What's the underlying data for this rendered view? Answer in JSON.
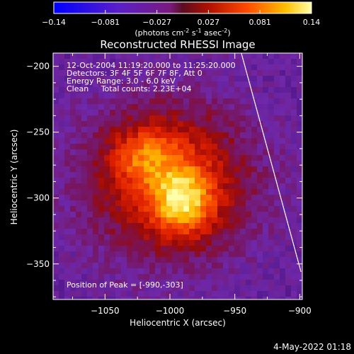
{
  "colorbar": {
    "ticks": [
      "-0.14",
      "-0.081",
      "-0.027",
      "0.027",
      "0.081",
      "0.14"
    ],
    "units_label": "(photons cm",
    "units_exp1": "-2",
    "units_mid": " s",
    "units_exp2": "-1",
    "units_end": " asec",
    "units_exp3": "-2",
    "units_close": ")"
  },
  "chart_data": {
    "type": "heatmap",
    "title": "Reconstructed RHESSI Image",
    "xlabel": "Heliocentric X (arcsec)",
    "ylabel": "Heliocentric Y (arcsec)",
    "xlim": [
      -1090,
      -898
    ],
    "ylim": [
      -377,
      -190
    ],
    "x_ticks": [
      -1050,
      -1000,
      -950,
      -900
    ],
    "y_ticks": [
      -200,
      -250,
      -300,
      -350
    ],
    "x_tick_labels": [
      "−1050",
      "−1000",
      "−950",
      "−900"
    ],
    "y_tick_labels": [
      "−200",
      "−250",
      "−300",
      "−350"
    ],
    "colorbar_range": [
      -0.14,
      0.14
    ],
    "peak": [
      -990,
      -303
    ],
    "limb_line": [
      [
        -945,
        -190
      ],
      [
        -899,
        -356
      ]
    ],
    "annotations": [
      "12-Oct-2004 11:19:20.000 to 11:25:20.000",
      "Detectors: 3F 4F 5F 6F 7F 8F, Att 0",
      "Energy Range: 3.0 - 6.0 keV",
      "Clean     Total counts: 2.23E+04"
    ],
    "peak_label": "Position of Peak = [-990,-303]"
  },
  "footer": {
    "date": "4-May-2022 01:18"
  }
}
